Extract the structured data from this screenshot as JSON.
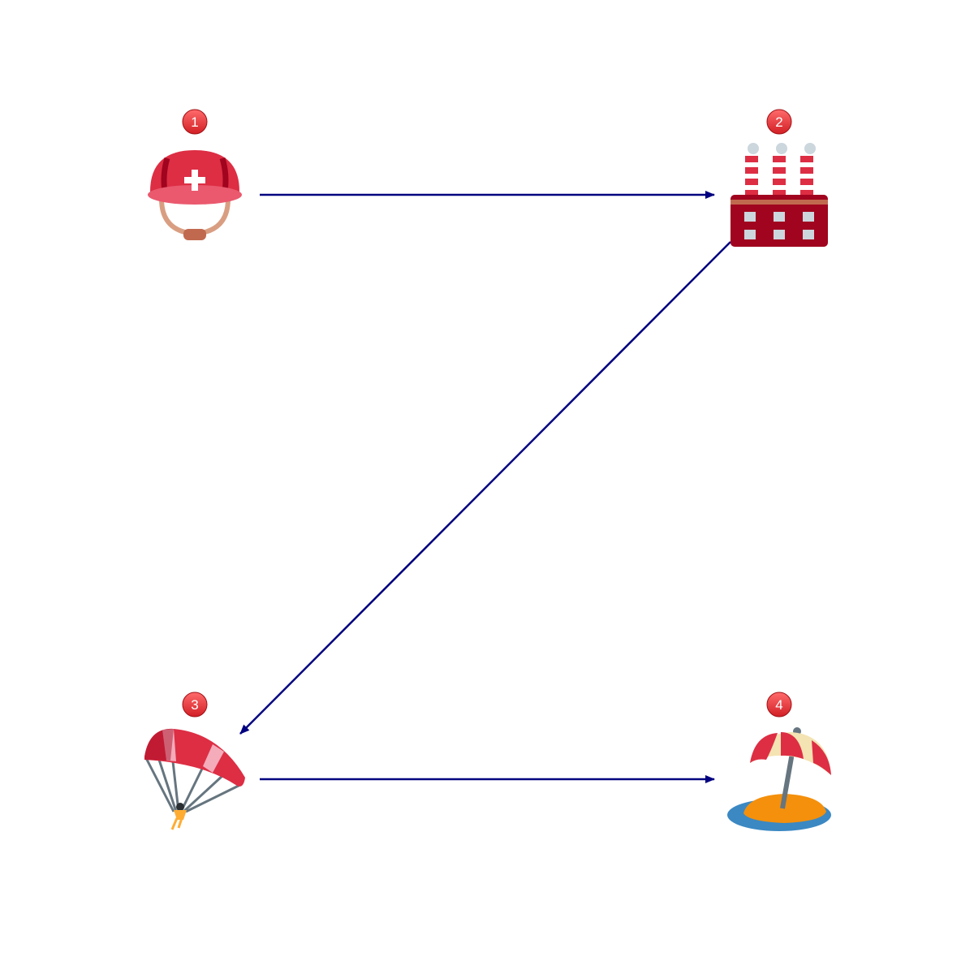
{
  "diagram": {
    "type": "flow",
    "line_color": "#000080",
    "badge_color": "#e8383d",
    "nodes": [
      {
        "id": "1",
        "badge": "1",
        "icon": "rescue-worker-helmet-icon"
      },
      {
        "id": "2",
        "badge": "2",
        "icon": "factory-icon"
      },
      {
        "id": "3",
        "badge": "3",
        "icon": "parachute-icon"
      },
      {
        "id": "4",
        "badge": "4",
        "icon": "desert-island-icon"
      }
    ],
    "edges": [
      {
        "from": "1",
        "to": "2"
      },
      {
        "from": "2",
        "to": "3"
      },
      {
        "from": "3",
        "to": "4"
      }
    ]
  }
}
